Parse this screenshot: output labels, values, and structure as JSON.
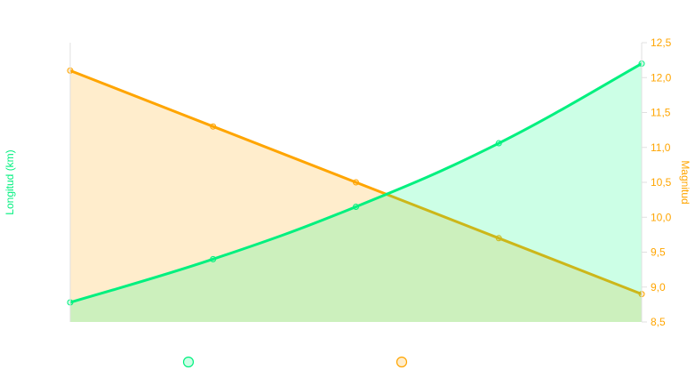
{
  "chart_data": {
    "type": "area",
    "x": [
      1,
      2,
      3,
      4,
      5
    ],
    "series": [
      {
        "axis": "left",
        "color": "#00f07f",
        "fill": "rgba(0,255,128,0.2)",
        "values": [
          8.78,
          9.4,
          10.15,
          11.06,
          12.2
        ],
        "smooth": true
      },
      {
        "axis": "right",
        "color": "#ffa500",
        "fill": "rgba(255,165,0,0.2)",
        "values": [
          12.1,
          11.3,
          10.5,
          9.7,
          8.9
        ],
        "smooth": false
      }
    ],
    "yleft": {
      "label": "Longitud (km)",
      "color": "#00f07f",
      "ticks_visible": false
    },
    "yright": {
      "label": "Magnitud",
      "color": "#ffa500",
      "ylim": [
        8.5,
        12.5
      ],
      "ticks": [
        "8,5",
        "9,0",
        "9,5",
        "10,0",
        "10,5",
        "11,0",
        "11,5",
        "12,0",
        "12,5"
      ]
    },
    "grid": false,
    "legend": {
      "placement": "bottom",
      "entries": [
        {
          "color": "#00f07f"
        },
        {
          "color": "#ffa500"
        }
      ]
    }
  }
}
